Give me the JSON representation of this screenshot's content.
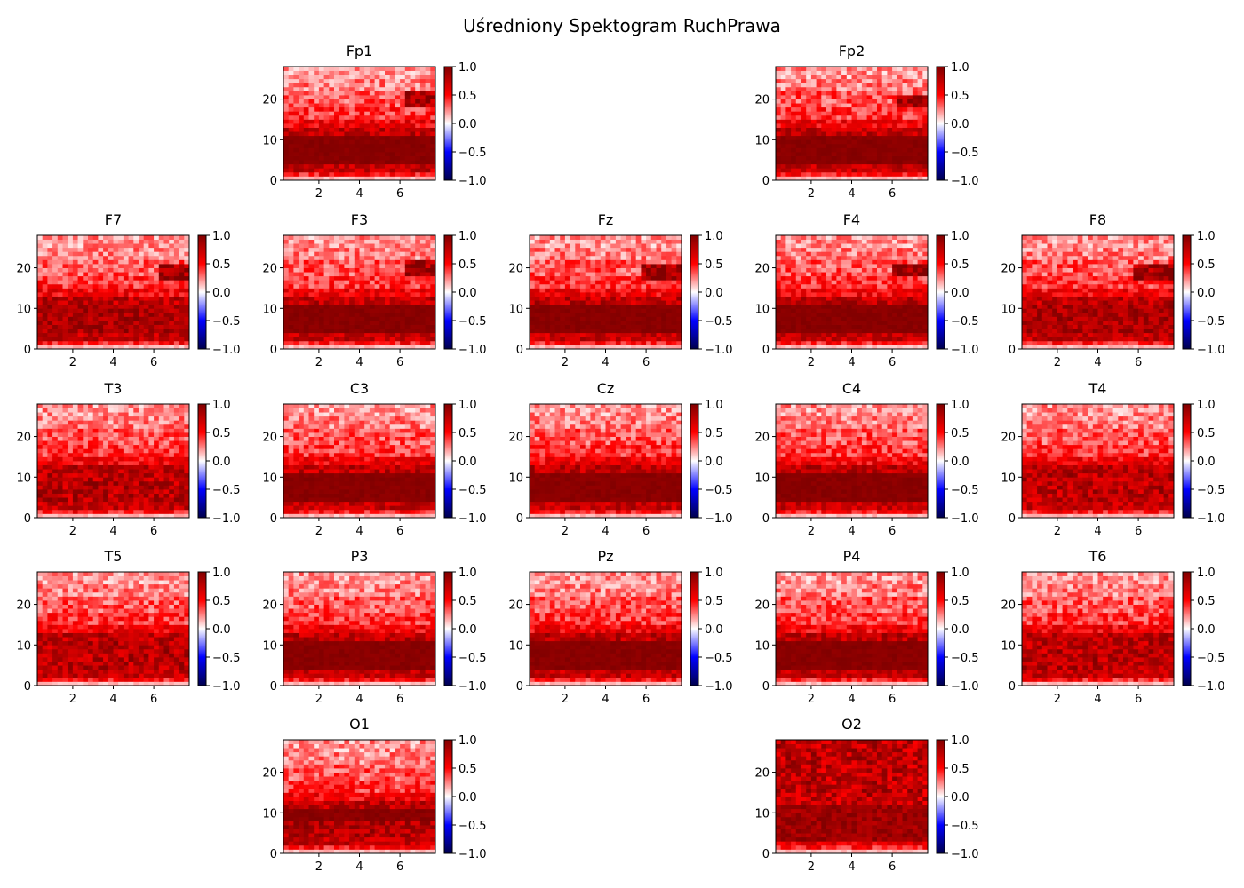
{
  "title": "Uśredniony Spektogram RuchPrawa",
  "colormap": {
    "name": "seismic",
    "negative": "#00004c",
    "low": "#0000ff",
    "zero": "#ffffff",
    "high": "#ff0000",
    "positive": "#800000"
  },
  "chart_data": {
    "type": "heatmap",
    "x_ticks": [
      2,
      4,
      6
    ],
    "y_ticks": [
      0,
      10,
      20
    ],
    "x_range": [
      0.25,
      7.75
    ],
    "y_range": [
      0,
      28
    ],
    "color_range": [
      -1.0,
      1.0
    ],
    "colorbar_ticks": [
      "1.0",
      "0.5",
      "0.0",
      "−0.5",
      "−1.0"
    ],
    "time_bins": 30,
    "freq_bins": 28,
    "channels": [
      {
        "name": "Fp1",
        "row": 0,
        "col": 1,
        "profile": "frontal",
        "hot": [
          24,
          18,
          21
        ]
      },
      {
        "name": "Fp2",
        "row": 0,
        "col": 3,
        "profile": "frontal",
        "hot": [
          24,
          18,
          20
        ]
      },
      {
        "name": "F7",
        "row": 1,
        "col": 0,
        "profile": "frontal-wide",
        "hot": [
          24,
          17,
          20
        ]
      },
      {
        "name": "F3",
        "row": 1,
        "col": 1,
        "profile": "frontal",
        "hot": [
          24,
          18,
          21
        ]
      },
      {
        "name": "Fz",
        "row": 1,
        "col": 2,
        "profile": "frontal",
        "hot": [
          22,
          17,
          20
        ]
      },
      {
        "name": "F4",
        "row": 1,
        "col": 3,
        "profile": "frontal",
        "hot": [
          23,
          18,
          20
        ]
      },
      {
        "name": "F8",
        "row": 1,
        "col": 4,
        "profile": "frontal-wide",
        "hot": [
          22,
          17,
          20
        ]
      },
      {
        "name": "T3",
        "row": 2,
        "col": 0,
        "profile": "temporal",
        "hot": []
      },
      {
        "name": "C3",
        "row": 2,
        "col": 1,
        "profile": "central",
        "hot": []
      },
      {
        "name": "Cz",
        "row": 2,
        "col": 2,
        "profile": "central",
        "hot": []
      },
      {
        "name": "C4",
        "row": 2,
        "col": 3,
        "profile": "central",
        "hot": []
      },
      {
        "name": "T4",
        "row": 2,
        "col": 4,
        "profile": "temporal",
        "hot": []
      },
      {
        "name": "T5",
        "row": 3,
        "col": 0,
        "profile": "temporal",
        "hot": []
      },
      {
        "name": "P3",
        "row": 3,
        "col": 1,
        "profile": "parietal",
        "hot": []
      },
      {
        "name": "Pz",
        "row": 3,
        "col": 2,
        "profile": "parietal",
        "hot": []
      },
      {
        "name": "P4",
        "row": 3,
        "col": 3,
        "profile": "parietal",
        "hot": []
      },
      {
        "name": "T6",
        "row": 3,
        "col": 4,
        "profile": "temporal",
        "hot": []
      },
      {
        "name": "O1",
        "row": 4,
        "col": 1,
        "profile": "occipital",
        "hot": []
      },
      {
        "name": "O2",
        "row": 4,
        "col": 3,
        "profile": "occipital-hot",
        "hot": []
      }
    ]
  }
}
